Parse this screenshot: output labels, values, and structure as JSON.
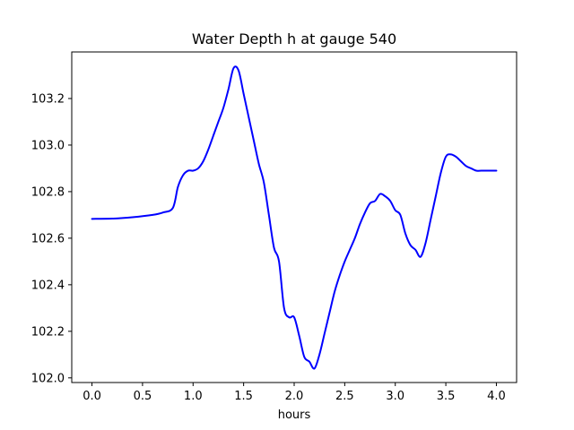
{
  "chart_data": {
    "type": "line",
    "title": "Water Depth h at gauge 540",
    "xlabel": "hours",
    "ylabel": "",
    "xlim": [
      -0.2,
      4.2
    ],
    "ylim": [
      101.98,
      103.4
    ],
    "xticks": [
      0.0,
      0.5,
      1.0,
      1.5,
      2.0,
      2.5,
      3.0,
      3.5,
      4.0
    ],
    "xtick_labels": [
      "0.0",
      "0.5",
      "1.0",
      "1.5",
      "2.0",
      "2.5",
      "3.0",
      "3.5",
      "4.0"
    ],
    "yticks": [
      102.0,
      102.2,
      102.4,
      102.6,
      102.8,
      103.0,
      103.2
    ],
    "ytick_labels": [
      "102.0",
      "102.2",
      "102.4",
      "102.6",
      "102.8",
      "103.0",
      "103.2"
    ],
    "grid": false,
    "legend": false,
    "series": [
      {
        "color": "#0000ff",
        "x": [
          0.0,
          0.2,
          0.4,
          0.6,
          0.7,
          0.8,
          0.85,
          0.9,
          0.95,
          1.0,
          1.05,
          1.1,
          1.15,
          1.2,
          1.25,
          1.3,
          1.35,
          1.4,
          1.45,
          1.5,
          1.55,
          1.6,
          1.65,
          1.7,
          1.75,
          1.8,
          1.85,
          1.9,
          1.95,
          2.0,
          2.05,
          2.1,
          2.15,
          2.2,
          2.25,
          2.3,
          2.35,
          2.4,
          2.45,
          2.5,
          2.55,
          2.6,
          2.65,
          2.7,
          2.75,
          2.8,
          2.85,
          2.9,
          2.95,
          3.0,
          3.05,
          3.1,
          3.15,
          3.2,
          3.25,
          3.3,
          3.35,
          3.4,
          3.45,
          3.5,
          3.55,
          3.6,
          3.65,
          3.7,
          3.75,
          3.8,
          3.85,
          3.9,
          3.95,
          4.0
        ],
        "y": [
          102.683,
          102.684,
          102.69,
          102.7,
          102.71,
          102.73,
          102.82,
          102.87,
          102.89,
          102.89,
          102.9,
          102.93,
          102.98,
          103.04,
          103.1,
          103.16,
          103.24,
          103.33,
          103.32,
          103.22,
          103.12,
          103.02,
          102.92,
          102.84,
          102.7,
          102.56,
          102.5,
          102.3,
          102.26,
          102.26,
          102.18,
          102.09,
          102.07,
          102.04,
          102.1,
          102.19,
          102.28,
          102.37,
          102.44,
          102.5,
          102.55,
          102.6,
          102.66,
          102.71,
          102.75,
          102.76,
          102.79,
          102.78,
          102.76,
          102.72,
          102.7,
          102.62,
          102.57,
          102.55,
          102.52,
          102.58,
          102.68,
          102.78,
          102.88,
          102.95,
          102.96,
          102.95,
          102.93,
          102.91,
          102.9,
          102.89,
          102.89,
          102.89,
          102.89,
          102.89
        ]
      }
    ]
  }
}
